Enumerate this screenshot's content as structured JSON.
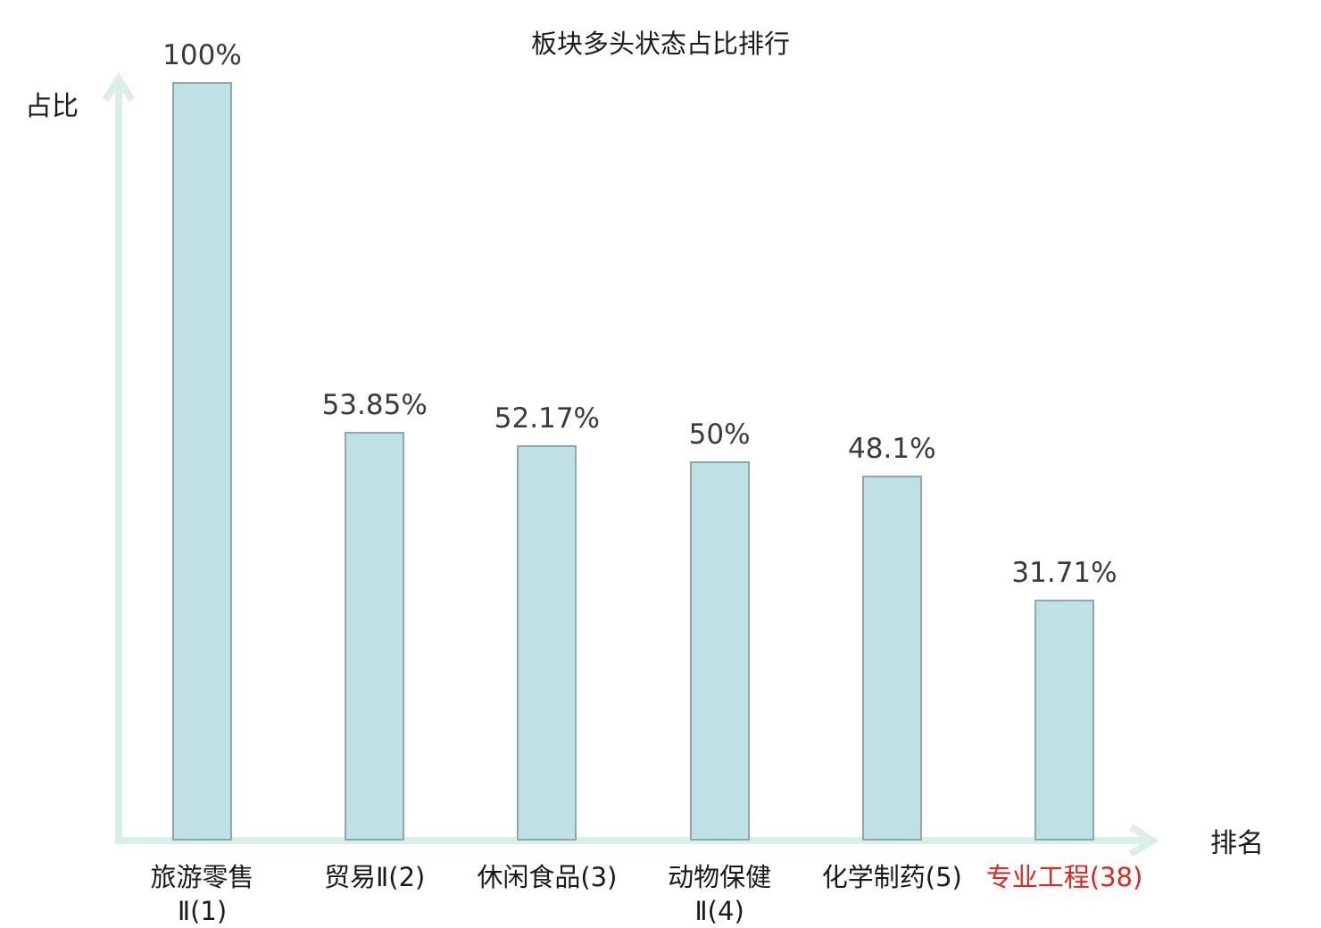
{
  "chart_data": {
    "type": "bar",
    "title": "板块多头状态占比排行",
    "xlabel": "排名",
    "ylabel": "占比",
    "ylim": [
      0,
      100
    ],
    "grid": false,
    "legend": null,
    "categories": [
      "旅游零售Ⅱ(1)",
      "贸易Ⅱ(2)",
      "休闲食品(3)",
      "动物保健Ⅱ(4)",
      "化学制药(5)",
      "专业工程(38)"
    ],
    "category_lines": [
      [
        "旅游零售",
        "Ⅱ(1)"
      ],
      [
        "贸易Ⅱ(2)"
      ],
      [
        "休闲食品(3)"
      ],
      [
        "动物保健",
        "Ⅱ(4)"
      ],
      [
        "化学制药(5)"
      ],
      [
        "专业工程(38)"
      ]
    ],
    "category_colors": [
      "#1a1a1a",
      "#1a1a1a",
      "#1a1a1a",
      "#1a1a1a",
      "#1a1a1a",
      "#e2261f"
    ],
    "values": [
      100,
      53.85,
      52.17,
      50,
      48.1,
      31.71
    ],
    "value_labels": [
      "100%",
      "53.85%",
      "52.17%",
      "50%",
      "48.1%",
      "31.71%"
    ],
    "bar_fill": "#bfe0e4",
    "bar_border": "#8fa6aa",
    "axis_color": "#dceeea",
    "value_label_color": "#3a3a3a",
    "highlight_color": "#e2261f",
    "background": "#ffffff"
  }
}
